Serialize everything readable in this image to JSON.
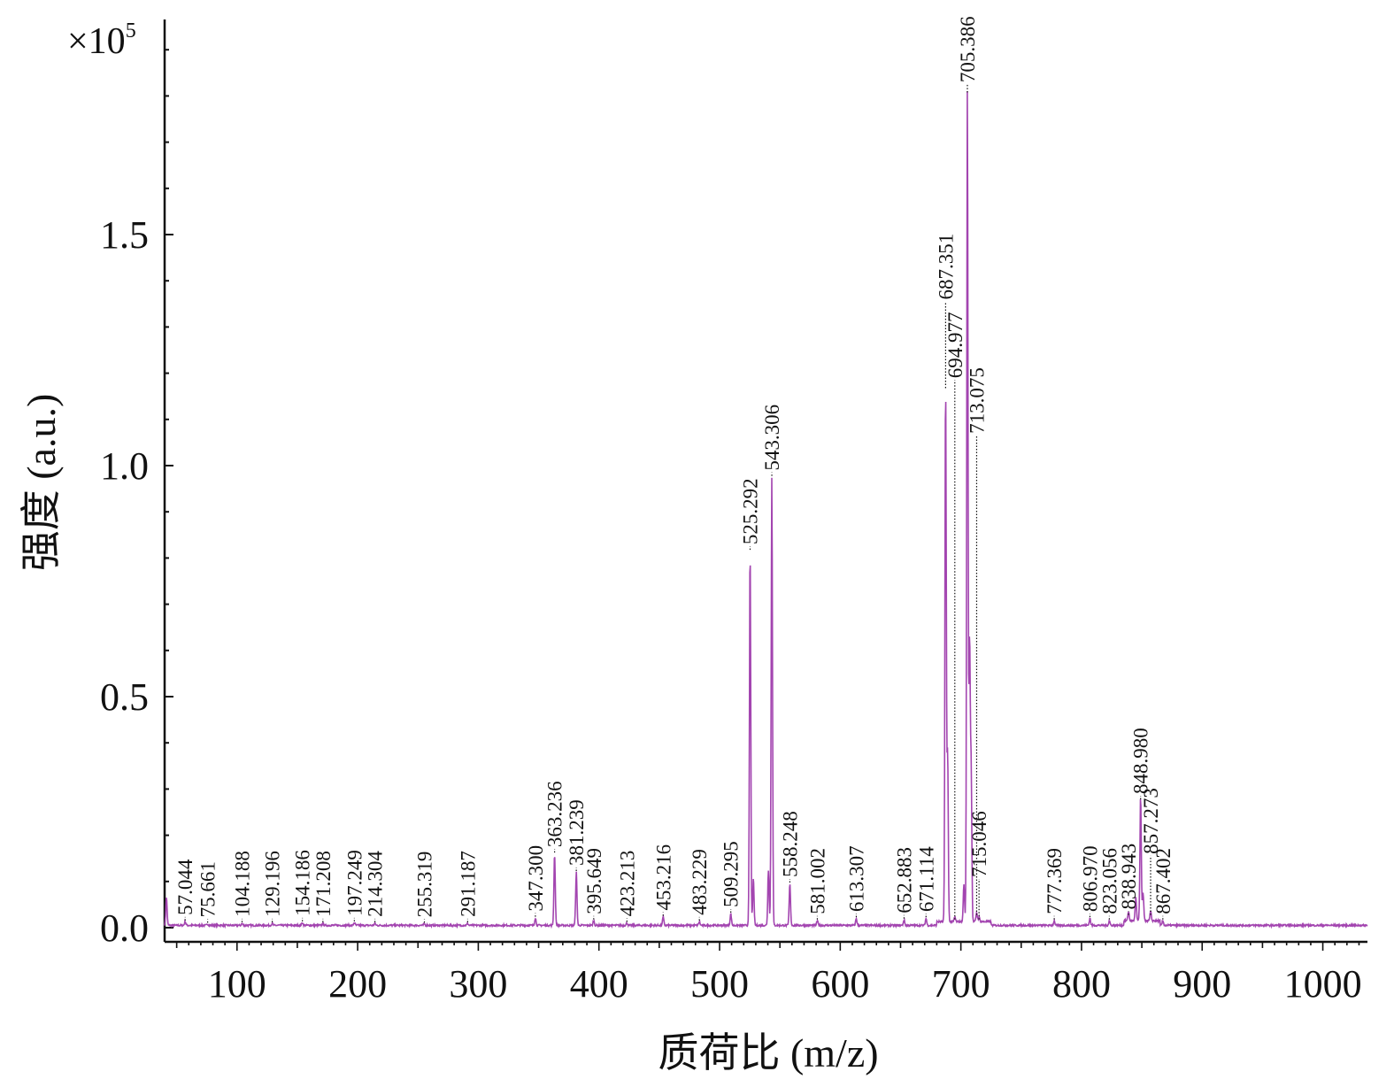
{
  "chart_data": {
    "type": "line",
    "title": "",
    "xlabel": "质荷比 (m/z)",
    "ylabel": "强度 (a.u.)",
    "y_multiplier": "×10",
    "y_multiplier_exp": "5",
    "xlim": [
      40,
      1037
    ],
    "ylim": [
      0,
      1.96
    ],
    "xticks": [
      100,
      200,
      300,
      400,
      500,
      600,
      700,
      800,
      900,
      1000
    ],
    "yticks": [
      0.0,
      0.5,
      1.0,
      1.5
    ],
    "ytick_labels": [
      "0.0",
      "0.5",
      "1.0",
      "1.5"
    ],
    "grid": false,
    "line_color": "#a345b0",
    "labeled_peaks": [
      {
        "mz": 57.044,
        "label": "57.044",
        "intensity": 0.008
      },
      {
        "mz": 75.661,
        "label": "75.661",
        "intensity": 0.003
      },
      {
        "mz": 104.188,
        "label": "104.188",
        "intensity": 0.004
      },
      {
        "mz": 129.196,
        "label": "129.196",
        "intensity": 0.004
      },
      {
        "mz": 154.186,
        "label": "154.186",
        "intensity": 0.006
      },
      {
        "mz": 171.208,
        "label": "171.208",
        "intensity": 0.004
      },
      {
        "mz": 197.249,
        "label": "197.249",
        "intensity": 0.006
      },
      {
        "mz": 214.304,
        "label": "214.304",
        "intensity": 0.004
      },
      {
        "mz": 255.319,
        "label": "255.319",
        "intensity": 0.003
      },
      {
        "mz": 291.187,
        "label": "291.187",
        "intensity": 0.004
      },
      {
        "mz": 347.3,
        "label": "347.300",
        "intensity": 0.016
      },
      {
        "mz": 363.236,
        "label": "363.236",
        "intensity": 0.155
      },
      {
        "mz": 381.239,
        "label": "381.239",
        "intensity": 0.115
      },
      {
        "mz": 395.649,
        "label": "395.649",
        "intensity": 0.01
      },
      {
        "mz": 423.213,
        "label": "423.213",
        "intensity": 0.005
      },
      {
        "mz": 453.216,
        "label": "453.216",
        "intensity": 0.018
      },
      {
        "mz": 483.229,
        "label": "483.229",
        "intensity": 0.008
      },
      {
        "mz": 509.295,
        "label": "509.295",
        "intensity": 0.025
      },
      {
        "mz": 525.292,
        "label": "525.292",
        "intensity": 0.81
      },
      {
        "mz": 543.306,
        "label": "543.306",
        "intensity": 0.97
      },
      {
        "mz": 558.248,
        "label": "558.248",
        "intensity": 0.09
      },
      {
        "mz": 581.002,
        "label": "581.002",
        "intensity": 0.01
      },
      {
        "mz": 613.307,
        "label": "613.307",
        "intensity": 0.015
      },
      {
        "mz": 652.883,
        "label": "652.883",
        "intensity": 0.012
      },
      {
        "mz": 671.114,
        "label": "671.114",
        "intensity": 0.015
      },
      {
        "mz": 687.351,
        "label": "687.351",
        "intensity": 1.16,
        "label_at": 1.34
      },
      {
        "mz": 694.977,
        "label": "694.977",
        "intensity": 0.01,
        "label_at": 1.17
      },
      {
        "mz": 705.386,
        "label": "705.386",
        "intensity": 1.8,
        "label_at": 1.81
      },
      {
        "mz": 713.075,
        "label": "713.075",
        "intensity": 0.02,
        "label_at": 1.05
      },
      {
        "mz": 715.046,
        "label": "715.046",
        "intensity": 0.01,
        "label_at": 0.09
      },
      {
        "mz": 777.369,
        "label": "777.369",
        "intensity": 0.01
      },
      {
        "mz": 806.97,
        "label": "806.970",
        "intensity": 0.015
      },
      {
        "mz": 823.056,
        "label": "823.056",
        "intensity": 0.01
      },
      {
        "mz": 838.943,
        "label": "838.943",
        "intensity": 0.02
      },
      {
        "mz": 848.98,
        "label": "848.980",
        "intensity": 0.27
      },
      {
        "mz": 857.273,
        "label": "857.273",
        "intensity": 0.02,
        "label_at": 0.14
      },
      {
        "mz": 867.402,
        "label": "867.402",
        "intensity": 0.01
      }
    ],
    "unlabeled_peaks": [
      {
        "mz": 41.5,
        "intensity": 0.06
      },
      {
        "mz": 528.0,
        "intensity": 0.1
      },
      {
        "mz": 540.5,
        "intensity": 0.12
      },
      {
        "mz": 689.0,
        "intensity": 0.36
      },
      {
        "mz": 702.5,
        "intensity": 0.08
      },
      {
        "mz": 707.2,
        "intensity": 0.6
      },
      {
        "mz": 708.5,
        "intensity": 0.33
      },
      {
        "mz": 845.0,
        "intensity": 0.05
      },
      {
        "mz": 851.0,
        "intensity": 0.06
      }
    ]
  }
}
